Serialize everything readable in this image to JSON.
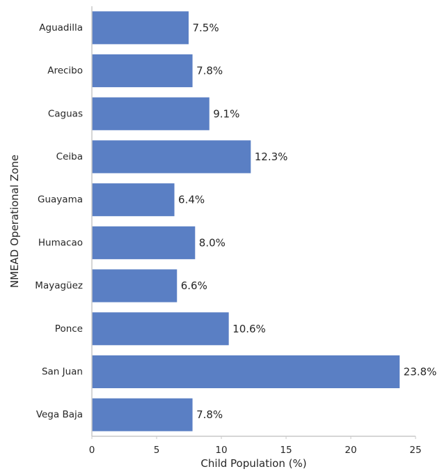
{
  "chart_data": {
    "type": "bar",
    "orientation": "horizontal",
    "categories": [
      "Aguadilla",
      "Arecibo",
      "Caguas",
      "Ceiba",
      "Guayama",
      "Humacao",
      "Mayagüez",
      "Ponce",
      "San Juan",
      "Vega Baja"
    ],
    "values": [
      7.5,
      7.8,
      9.1,
      12.3,
      6.4,
      8.0,
      6.6,
      10.6,
      23.8,
      7.8
    ],
    "data_labels": [
      "7.5%",
      "7.8%",
      "9.1%",
      "12.3%",
      "6.4%",
      "8.0%",
      "6.6%",
      "10.6%",
      "23.8%",
      "7.8%"
    ],
    "xlabel": "Child Population (%)",
    "ylabel": "NMEAD Operational Zone",
    "xlim": [
      0,
      25
    ],
    "xticks": [
      0,
      5,
      10,
      15,
      20,
      25
    ],
    "grid": false,
    "bar_color": "#5a7fc4",
    "bar_edge_color": "#ffffff",
    "axis_color": "#c8c8c8",
    "text_color": "#262626"
  }
}
